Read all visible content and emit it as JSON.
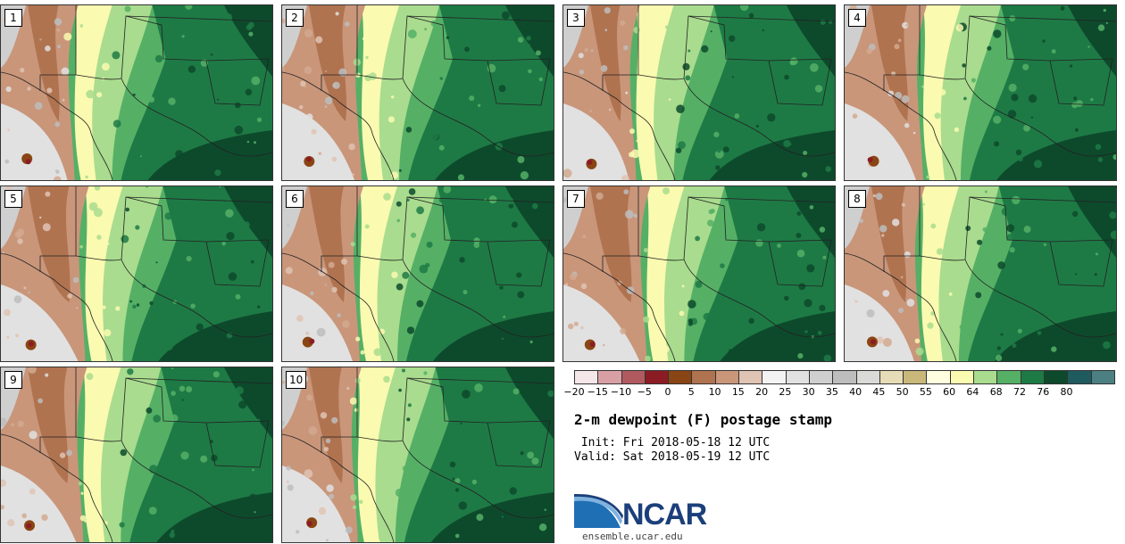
{
  "panels": [
    {
      "label": "1"
    },
    {
      "label": "2"
    },
    {
      "label": "3"
    },
    {
      "label": "4"
    },
    {
      "label": "5"
    },
    {
      "label": "6"
    },
    {
      "label": "7"
    },
    {
      "label": "8"
    },
    {
      "label": "9"
    },
    {
      "label": "10"
    }
  ],
  "colorbar": {
    "ticks": [
      "−20",
      "−15",
      "−10",
      "−5",
      "0",
      "5",
      "10",
      "15",
      "20",
      "25",
      "30",
      "35",
      "40",
      "45",
      "50",
      "55",
      "60",
      "64",
      "68",
      "72",
      "76",
      "80"
    ],
    "colors": [
      "#f5e6ea",
      "#d8a0a5",
      "#b05a60",
      "#8c1c24",
      "#8a4514",
      "#b07350",
      "#c9967a",
      "#dfc3b3",
      "#f3f3f3",
      "#e1e1e1",
      "#cfcfcf",
      "#bdbdbd",
      "#dadad6",
      "#e6dcb8",
      "#c9b87a",
      "#ffffe0",
      "#fafab0",
      "#a9dc8e",
      "#55b066",
      "#1e7a45",
      "#0d4a2c",
      "#1f5a5e",
      "#4c7f82"
    ]
  },
  "title": "2-m dewpoint (F) postage stamp",
  "init_line": " Init: Fri 2018-05-18 12 UTC",
  "valid_line": "Valid: Sat 2018-05-19 12 UTC",
  "logo": {
    "text": "NCAR",
    "site": "ensemble.ucar.edu"
  }
}
